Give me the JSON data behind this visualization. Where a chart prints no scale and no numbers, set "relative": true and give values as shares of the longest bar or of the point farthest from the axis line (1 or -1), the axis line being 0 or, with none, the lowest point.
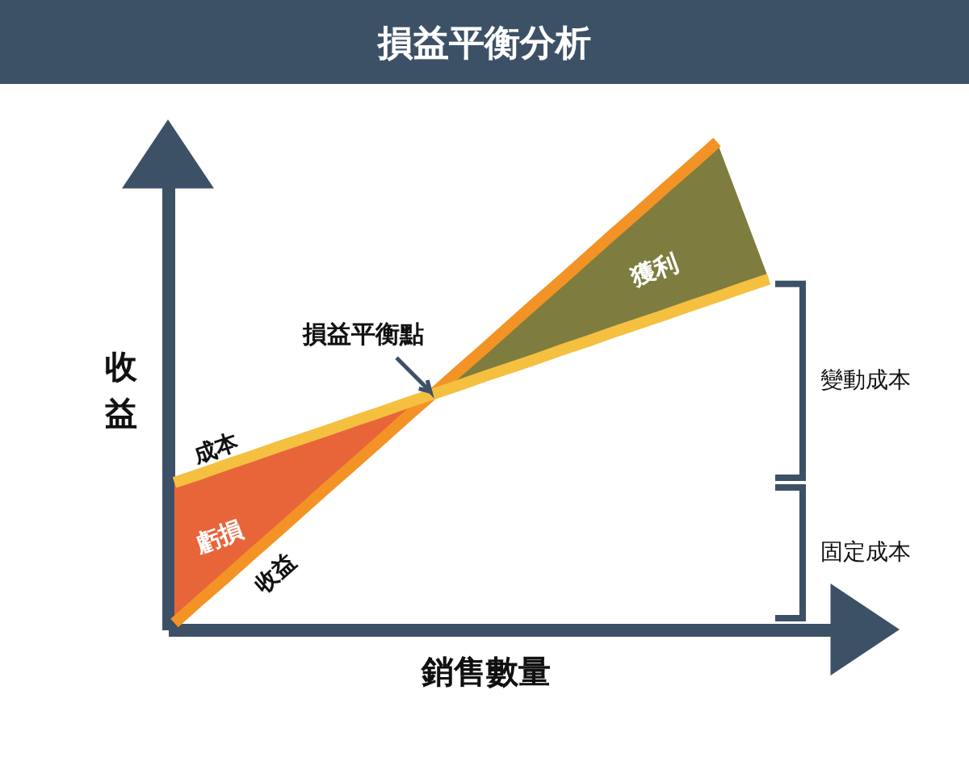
{
  "chart_data": {
    "type": "line",
    "title": "損益平衡分析",
    "xlabel": "銷售數量",
    "ylabel": "收益",
    "relative": true,
    "categories": [
      null,
      null,
      null,
      null,
      null,
      null,
      null,
      null,
      null,
      null,
      null,
      null,
      null,
      null,
      null,
      null,
      null,
      null,
      null,
      null,
      null,
      null,
      null,
      null
    ],
    "series": [
      {
        "name": "虧損",
        "type": "area",
        "color": "#e8653a",
        "values": [
          0.292,
          0.31,
          0.329,
          0.347,
          0.366,
          0.384,
          0.402,
          0.421,
          0.439,
          0.458,
          0.476,
          null,
          null,
          null,
          null,
          null,
          null,
          null,
          null,
          null,
          null,
          null,
          null,
          null
        ]
      },
      {
        "name": "獲利",
        "type": "area",
        "color": "#7e7d3f",
        "values": [
          null,
          null,
          null,
          null,
          null,
          null,
          null,
          null,
          null,
          null,
          0.476,
          0.524,
          0.571,
          0.619,
          0.667,
          0.714,
          0.762,
          0.81,
          0.857,
          0.905,
          0.952,
          1,
          0.858,
          0.715
        ]
      },
      {
        "name": "收益",
        "color": "#f39325",
        "values": [
          0,
          0.048,
          0.095,
          0.143,
          0.19,
          0.238,
          0.286,
          0.333,
          0.381,
          0.429,
          0.476,
          0.524,
          0.571,
          0.619,
          0.667,
          0.714,
          0.762,
          0.81,
          0.857,
          0.905,
          0.952,
          1,
          null,
          null
        ]
      },
      {
        "name": "成本",
        "color": "#f5c040",
        "values": [
          0.292,
          0.31,
          0.329,
          0.347,
          0.366,
          0.384,
          0.402,
          0.421,
          0.439,
          0.458,
          0.476,
          0.494,
          0.513,
          0.531,
          0.549,
          0.568,
          0.586,
          0.605,
          0.623,
          0.641,
          0.66,
          0.678,
          0.697,
          0.715
        ]
      }
    ],
    "annotations": [
      "損益平衡點",
      "變動成本",
      "固定成本"
    ]
  }
}
